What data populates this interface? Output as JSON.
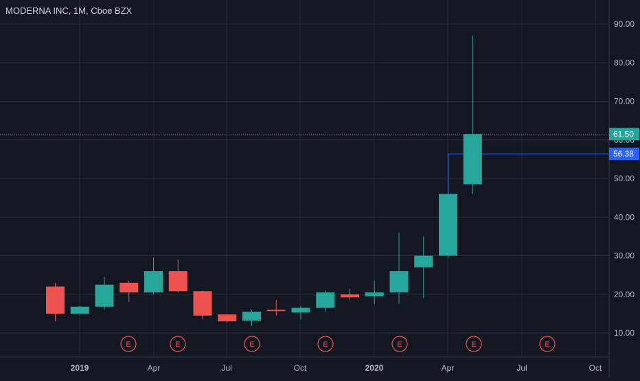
{
  "chart_data": {
    "type": "candlestick",
    "title": "MODERNA INC, 1M, Cboe BZX",
    "ylim": [
      5,
      96
    ],
    "y_ticks": [
      "90.00",
      "80.00",
      "70.00",
      "60.00",
      "50.00",
      "40.00",
      "30.00",
      "20.00",
      "10.00"
    ],
    "x_ticks": [
      "2019",
      "Apr",
      "Jul",
      "Oct",
      "2020",
      "Apr",
      "Jul",
      "Oct"
    ],
    "grid": true,
    "candles": [
      {
        "open": 22.0,
        "high": 23.0,
        "low": 13.0,
        "close": 15.0
      },
      {
        "open": 15.0,
        "high": 17.0,
        "low": 14.5,
        "close": 16.8
      },
      {
        "open": 16.8,
        "high": 24.5,
        "low": 16.0,
        "close": 22.5
      },
      {
        "open": 23.0,
        "high": 23.5,
        "low": 18.0,
        "close": 20.5
      },
      {
        "open": 20.5,
        "high": 29.5,
        "low": 20.0,
        "close": 26.0
      },
      {
        "open": 26.0,
        "high": 29.0,
        "low": 20.5,
        "close": 20.8
      },
      {
        "open": 20.8,
        "high": 21.0,
        "low": 13.5,
        "close": 14.5
      },
      {
        "open": 14.8,
        "high": 14.8,
        "low": 12.8,
        "close": 13.0
      },
      {
        "open": 13.2,
        "high": 16.0,
        "low": 11.8,
        "close": 15.5
      },
      {
        "open": 16.0,
        "high": 18.5,
        "low": 14.5,
        "close": 15.8
      },
      {
        "open": 15.3,
        "high": 17.0,
        "low": 13.5,
        "close": 16.5
      },
      {
        "open": 16.5,
        "high": 21.0,
        "low": 15.5,
        "close": 20.5
      },
      {
        "open": 20.0,
        "high": 21.5,
        "low": 18.5,
        "close": 19.2
      },
      {
        "open": 19.5,
        "high": 23.5,
        "low": 17.5,
        "close": 20.5
      },
      {
        "open": 20.5,
        "high": 36.0,
        "low": 17.5,
        "close": 26.0
      },
      {
        "open": 27.0,
        "high": 35.0,
        "low": 19.0,
        "close": 30.0
      },
      {
        "open": 30.0,
        "high": 46.0,
        "low": 29.5,
        "close": 46.0
      },
      {
        "open": 48.5,
        "high": 87.0,
        "low": 46.0,
        "close": 61.5
      }
    ],
    "earnings_markers": [
      "E",
      "E",
      "E",
      "E",
      "E",
      "E",
      "E"
    ],
    "price_labels": [
      {
        "value": 61.5,
        "text": "61.50"
      },
      {
        "value": 56.38,
        "text": "56.38"
      }
    ]
  },
  "colors": {
    "background": "#131722",
    "grid": "#2a2e39",
    "up": "#26a69a",
    "down": "#ef5350",
    "text": "#d1d4dc",
    "axis_text": "#b2b5be",
    "marker": "#ef5350",
    "price_line": "#26a69a",
    "level_line": "#2962ff"
  }
}
